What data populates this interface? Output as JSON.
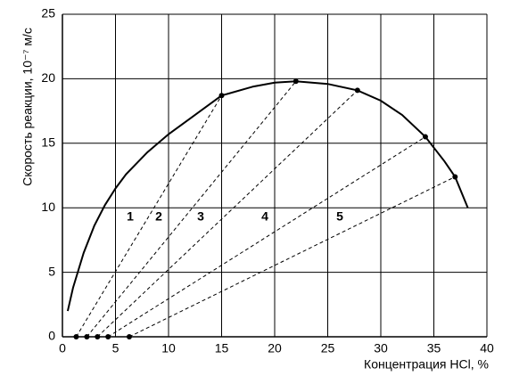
{
  "chart_data": {
    "type": "line",
    "xlabel": "Концентрация HCl, %",
    "ylabel": "Скорость реакции, 10⁻⁷ м/с",
    "xlim": [
      0,
      40
    ],
    "ylim": [
      0,
      25
    ],
    "xticks": [
      0,
      5,
      10,
      15,
      20,
      25,
      30,
      35,
      40
    ],
    "yticks": [
      0,
      5,
      10,
      15,
      20,
      25
    ],
    "grid": true,
    "series": [
      {
        "color": "#000000",
        "x": [
          0.5,
          1,
          2,
          3,
          4,
          5,
          6,
          8,
          10,
          12,
          15,
          18,
          20,
          22,
          25,
          27.8,
          30,
          32,
          34.2,
          36,
          37,
          38.2
        ],
        "values": [
          2,
          3.8,
          6.5,
          8.6,
          10.2,
          11.5,
          12.6,
          14.3,
          15.7,
          16.9,
          18.7,
          19.4,
          19.7,
          19.8,
          19.6,
          19.1,
          18.3,
          17.2,
          15.5,
          13.6,
          12.4,
          10
        ]
      }
    ],
    "tangents": [
      {
        "x": [
          1.3,
          15
        ],
        "values": [
          0,
          18.7
        ]
      },
      {
        "x": [
          2.3,
          22
        ],
        "values": [
          0,
          19.8
        ]
      },
      {
        "x": [
          3.3,
          27.8
        ],
        "values": [
          0,
          19.1
        ]
      },
      {
        "x": [
          4.3,
          34.2
        ],
        "values": [
          0,
          15.5
        ]
      },
      {
        "x": [
          6.3,
          37
        ],
        "values": [
          0,
          12.4
        ]
      }
    ],
    "annotations": [
      "1",
      "2",
      "3",
      "4",
      "5"
    ]
  }
}
